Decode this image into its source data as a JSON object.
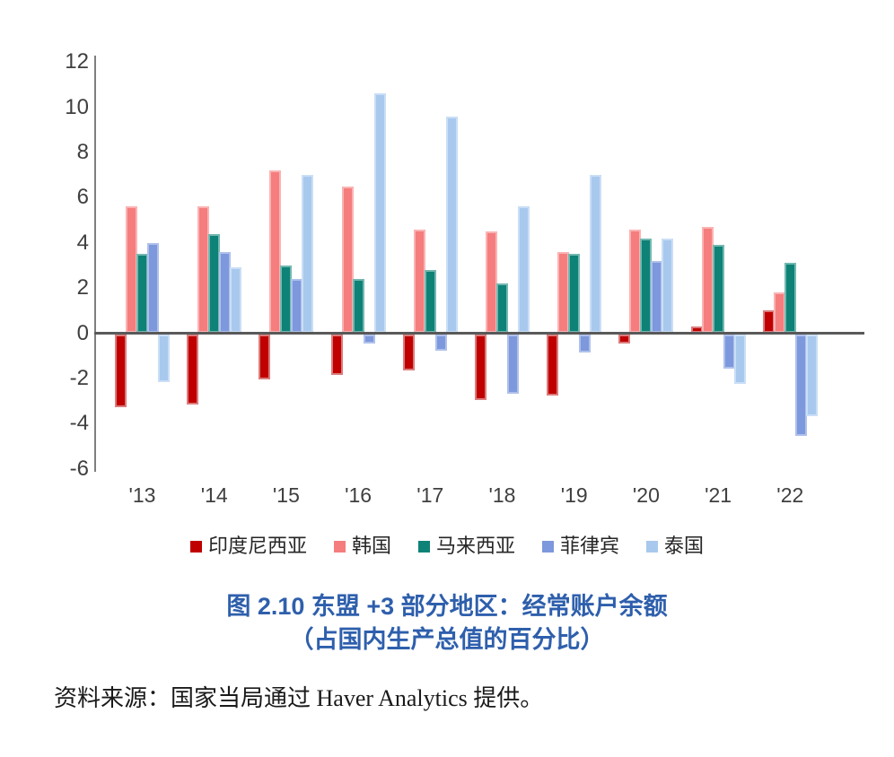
{
  "figure": {
    "title_line1": "图 2.10 东盟 +3 部分地区：经常账户余额",
    "title_line2": "（占国内生产总值的百分比）",
    "title_color": "#2E5FAC",
    "source": "资料来源：国家当局通过 Haver Analytics 提供。"
  },
  "chart_data": {
    "type": "bar",
    "title": "图 2.10 东盟 +3 部分地区：经常账户余额（占国内生产总值的百分比）",
    "xlabel": "",
    "ylabel": "",
    "ylim": [
      -6.3,
      12.3
    ],
    "y_ticks": [
      12,
      10,
      8,
      6,
      4,
      2,
      0,
      -2,
      -4,
      -6
    ],
    "grid": false,
    "legend_position": "bottom",
    "categories": [
      "'13",
      "'14",
      "'15",
      "'16",
      "'17",
      "'18",
      "'19",
      "'20",
      "'21",
      "'22"
    ],
    "series": [
      {
        "name": "印度尼西亚",
        "color": "#C00000",
        "border_color": "#DA7C7C",
        "values": [
          -3.2,
          -3.1,
          -2.0,
          -1.8,
          -1.6,
          -2.9,
          -2.7,
          -0.4,
          0.3,
          1.0
        ]
      },
      {
        "name": "韩国",
        "color": "#F57D7D",
        "border_color": "#FAB3B3",
        "values": [
          5.6,
          5.6,
          7.2,
          6.5,
          4.6,
          4.5,
          3.6,
          4.6,
          4.7,
          1.8
        ]
      },
      {
        "name": "马来西亚",
        "color": "#0E8276",
        "border_color": "#73B8B0",
        "values": [
          3.5,
          4.4,
          3.0,
          2.4,
          2.8,
          2.2,
          3.5,
          4.2,
          3.9,
          3.1
        ]
      },
      {
        "name": "菲律宾",
        "color": "#7D98DC",
        "border_color": "#AFC0EB",
        "values": [
          4.0,
          3.6,
          2.4,
          -0.4,
          -0.7,
          -2.6,
          -0.8,
          3.2,
          -1.5,
          -4.5
        ]
      },
      {
        "name": "泰国",
        "color": "#A8C9ED",
        "border_color": "#CADEF6",
        "values": [
          -2.1,
          2.9,
          7.0,
          10.6,
          9.6,
          5.6,
          7.0,
          4.2,
          -2.2,
          -3.6
        ]
      }
    ]
  }
}
